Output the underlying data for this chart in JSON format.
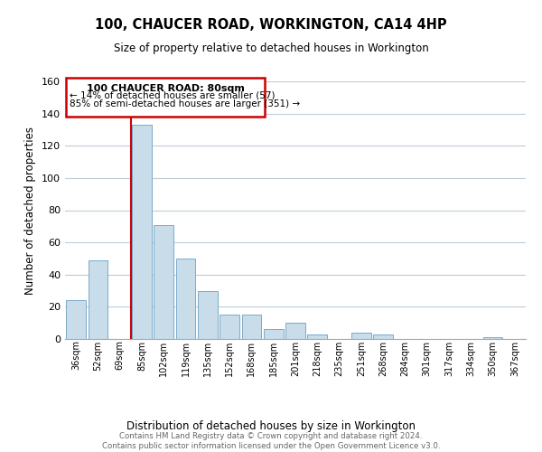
{
  "title": "100, CHAUCER ROAD, WORKINGTON, CA14 4HP",
  "subtitle": "Size of property relative to detached houses in Workington",
  "xlabel": "Distribution of detached houses by size in Workington",
  "ylabel": "Number of detached properties",
  "bar_color": "#c8dcea",
  "bar_edge_color": "#7aaac8",
  "categories": [
    "36sqm",
    "52sqm",
    "69sqm",
    "85sqm",
    "102sqm",
    "119sqm",
    "135sqm",
    "152sqm",
    "168sqm",
    "185sqm",
    "201sqm",
    "218sqm",
    "235sqm",
    "251sqm",
    "268sqm",
    "284sqm",
    "301sqm",
    "317sqm",
    "334sqm",
    "350sqm",
    "367sqm"
  ],
  "values": [
    24,
    49,
    0,
    133,
    71,
    50,
    30,
    15,
    15,
    6,
    10,
    3,
    0,
    4,
    3,
    0,
    0,
    0,
    0,
    1,
    0
  ],
  "ylim": [
    0,
    160
  ],
  "yticks": [
    0,
    20,
    40,
    60,
    80,
    100,
    120,
    140,
    160
  ],
  "marker_bar_index": 3,
  "marker_color": "#cc0000",
  "annotation_title": "100 CHAUCER ROAD: 80sqm",
  "annotation_line1": "← 14% of detached houses are smaller (57)",
  "annotation_line2": "85% of semi-detached houses are larger (351) →",
  "footer_line1": "Contains HM Land Registry data © Crown copyright and database right 2024.",
  "footer_line2": "Contains public sector information licensed under the Open Government Licence v3.0.",
  "background_color": "#ffffff",
  "grid_color": "#c0ccd8"
}
